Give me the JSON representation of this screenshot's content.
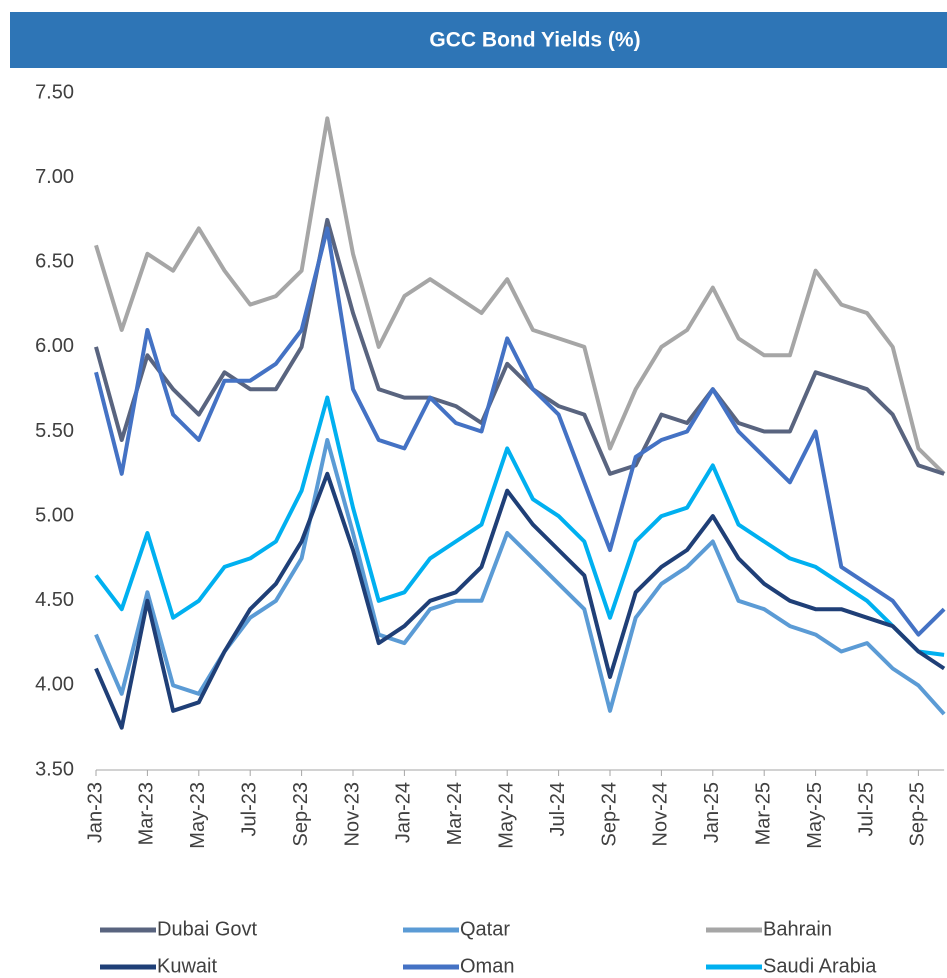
{
  "chart_data": {
    "type": "line",
    "title": "GCC Bond Yields (%)",
    "categories": [
      "Jan-23",
      null,
      "Mar-23",
      null,
      "May-23",
      null,
      "Jul-23",
      null,
      "Sep-23",
      null,
      "Nov-23",
      null,
      "Jan-24",
      null,
      "Mar-24",
      null,
      "May-24",
      null,
      "Jul-24",
      null,
      "Sep-24",
      null,
      "Nov-24",
      null,
      "Jan-25",
      null,
      "Mar-25",
      null,
      "May-25",
      null,
      "Jul-25",
      null,
      "Sep-25",
      null
    ],
    "series": [
      {
        "name": "Dubai Govt",
        "color": "#59647f",
        "values": [
          6.0,
          5.45,
          5.95,
          5.75,
          5.6,
          5.85,
          5.75,
          5.75,
          6.0,
          6.75,
          6.2,
          5.75,
          5.7,
          5.7,
          5.65,
          5.55,
          5.9,
          5.75,
          5.65,
          5.6,
          5.25,
          5.3,
          5.6,
          5.55,
          5.75,
          5.55,
          5.5,
          5.5,
          5.85,
          5.8,
          5.75,
          5.6,
          5.3,
          5.25
        ]
      },
      {
        "name": "Qatar",
        "color": "#5b9bd5",
        "values": [
          4.3,
          3.95,
          4.55,
          4.0,
          3.95,
          4.2,
          4.4,
          4.5,
          4.75,
          5.45,
          4.9,
          4.3,
          4.25,
          4.45,
          4.5,
          4.5,
          4.9,
          4.75,
          4.6,
          4.45,
          3.85,
          4.4,
          4.6,
          4.7,
          4.85,
          4.5,
          4.45,
          4.35,
          4.3,
          4.2,
          4.25,
          4.1,
          4.0,
          3.83
        ]
      },
      {
        "name": "Bahrain",
        "color": "#a6a6a6",
        "values": [
          6.6,
          6.1,
          6.55,
          6.45,
          6.7,
          6.45,
          6.25,
          6.3,
          6.45,
          7.35,
          6.55,
          6.0,
          6.3,
          6.4,
          6.3,
          6.2,
          6.4,
          6.1,
          6.05,
          6.0,
          5.4,
          5.75,
          6.0,
          6.1,
          6.35,
          6.05,
          5.95,
          5.95,
          6.45,
          6.25,
          6.2,
          6.0,
          5.4,
          5.25
        ]
      },
      {
        "name": "Kuwait",
        "color": "#1f3f77",
        "values": [
          4.1,
          3.75,
          4.5,
          3.85,
          3.9,
          4.2,
          4.45,
          4.6,
          4.85,
          5.25,
          4.8,
          4.25,
          4.35,
          4.5,
          4.55,
          4.7,
          5.15,
          4.95,
          4.8,
          4.65,
          4.05,
          4.55,
          4.7,
          4.8,
          5.0,
          4.75,
          4.6,
          4.5,
          4.45,
          4.45,
          4.4,
          4.35,
          4.2,
          4.1
        ]
      },
      {
        "name": "Oman",
        "color": "#4472c4",
        "values": [
          5.85,
          5.25,
          6.1,
          5.6,
          5.45,
          5.8,
          5.8,
          5.9,
          6.1,
          6.7,
          5.75,
          5.45,
          5.4,
          5.7,
          5.55,
          5.5,
          6.05,
          5.75,
          5.6,
          5.2,
          4.8,
          5.35,
          5.45,
          5.5,
          5.75,
          5.5,
          5.35,
          5.2,
          5.5,
          4.7,
          4.6,
          4.5,
          4.3,
          4.45
        ]
      },
      {
        "name": "Saudi Arabia",
        "color": "#00b0f0",
        "values": [
          4.65,
          4.45,
          4.9,
          4.4,
          4.5,
          4.7,
          4.75,
          4.85,
          5.15,
          5.7,
          5.05,
          4.5,
          4.55,
          4.75,
          4.85,
          4.95,
          5.4,
          5.1,
          5.0,
          4.85,
          4.4,
          4.85,
          5.0,
          5.05,
          5.3,
          4.95,
          4.85,
          4.75,
          4.7,
          4.6,
          4.5,
          4.35,
          4.2,
          4.18
        ]
      }
    ],
    "ylim": [
      3.5,
      7.5
    ],
    "yticks": [
      {
        "value": 3.5,
        "label": "3.50"
      },
      {
        "value": 4.0,
        "label": "4.00"
      },
      {
        "value": 4.5,
        "label": "4.50"
      },
      {
        "value": 5.0,
        "label": "5.00"
      },
      {
        "value": 5.5,
        "label": "5.50"
      },
      {
        "value": 6.0,
        "label": "6.00"
      },
      {
        "value": 6.5,
        "label": "6.50"
      },
      {
        "value": 7.0,
        "label": "7.00"
      },
      {
        "value": 7.5,
        "label": "7.50"
      }
    ],
    "legend": "bottom",
    "title_bar_color": "#2e75b6"
  }
}
